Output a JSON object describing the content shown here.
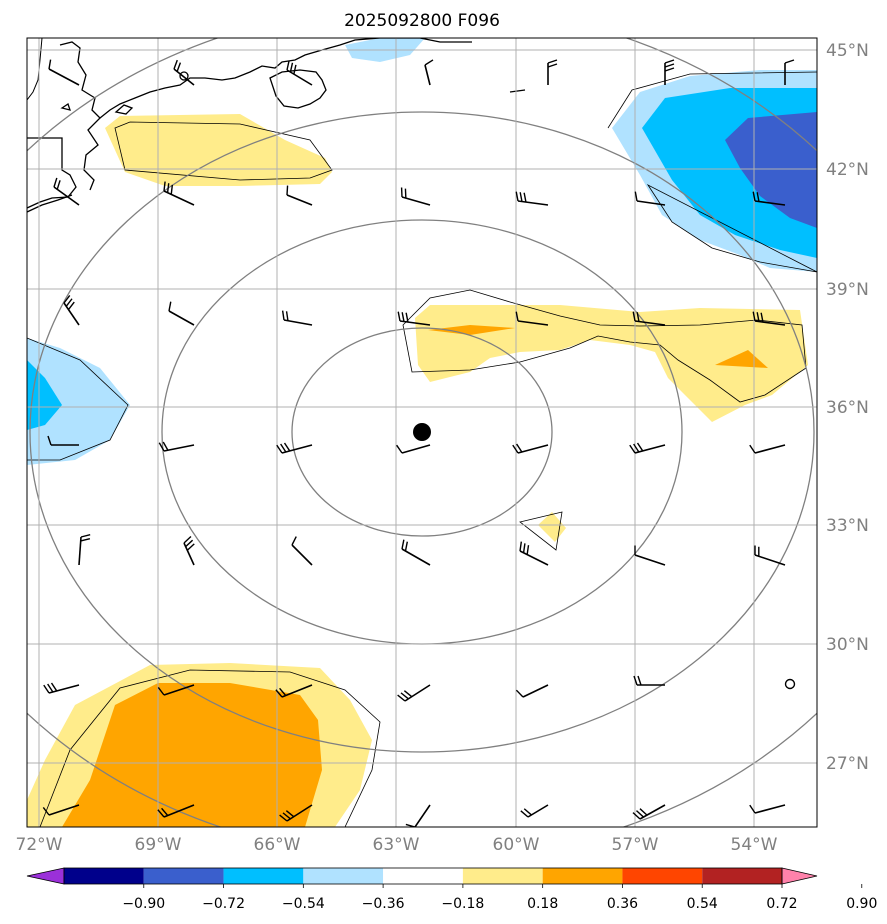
{
  "title": "2025092800 F096",
  "lon_ticks": [
    "72°W",
    "69°W",
    "66°W",
    "63°W",
    "60°W",
    "57°W",
    "54°W"
  ],
  "lat_ticks": [
    "45°N",
    "42°N",
    "39°N",
    "36°N",
    "33°N",
    "30°N",
    "27°N"
  ],
  "colorbar": {
    "labels": [
      "−0.90",
      "−0.72",
      "−0.54",
      "−0.36",
      "−0.18",
      "0.18",
      "0.36",
      "0.54",
      "0.72",
      "0.90"
    ],
    "colors": [
      "#9b30d9",
      "#00008b",
      "#3a5fcd",
      "#00bfff",
      "#b0e2ff",
      "#ffffff",
      "#ffec8b",
      "#ffa500",
      "#ff4500",
      "#b22222",
      "#ff82ab"
    ]
  },
  "center_marker": {
    "lon": -62.3,
    "lat": 35.4
  },
  "range_rings": 5,
  "colors": {
    "land_outline": "#000000",
    "grid": "#b0b0b0",
    "rings": "#808080",
    "barbs": "#000000"
  }
}
